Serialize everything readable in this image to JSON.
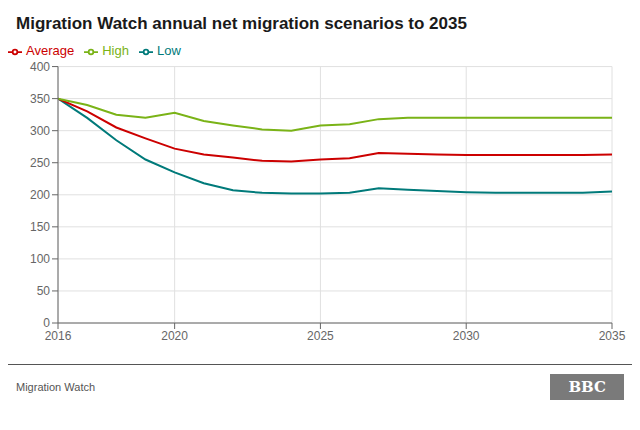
{
  "chart_data": {
    "type": "line",
    "title": "Migration Watch annual net migration scenarios to 2035",
    "x": [
      2016,
      2017,
      2018,
      2019,
      2020,
      2021,
      2022,
      2023,
      2024,
      2025,
      2026,
      2027,
      2028,
      2029,
      2030,
      2031,
      2032,
      2033,
      2034,
      2035
    ],
    "series": [
      {
        "name": "Low",
        "color": "#007a7a",
        "values": [
          350,
          320,
          285,
          255,
          235,
          218,
          207,
          203,
          202,
          202,
          203,
          210,
          208,
          206,
          204,
          203,
          203,
          203,
          203,
          205
        ]
      },
      {
        "name": "Average",
        "color": "#cc0000",
        "values": [
          350,
          330,
          305,
          288,
          272,
          263,
          258,
          253,
          252,
          255,
          257,
          265,
          264,
          263,
          262,
          262,
          262,
          262,
          262,
          263
        ]
      },
      {
        "name": "High",
        "color": "#7ab317",
        "values": [
          350,
          340,
          325,
          320,
          328,
          315,
          308,
          302,
          300,
          308,
          310,
          318,
          320,
          320,
          320,
          320,
          320,
          320,
          320,
          320
        ]
      }
    ],
    "xlim": [
      2016,
      2035
    ],
    "xticks": [
      2016,
      2020,
      2025,
      2030,
      2035
    ],
    "ylim": [
      0,
      400
    ],
    "yticks": [
      0,
      50,
      100,
      150,
      200,
      250,
      300,
      350,
      400
    ],
    "grid": true,
    "legend": "top",
    "annotations": [
      "Migration Watch",
      "BBC"
    ]
  }
}
